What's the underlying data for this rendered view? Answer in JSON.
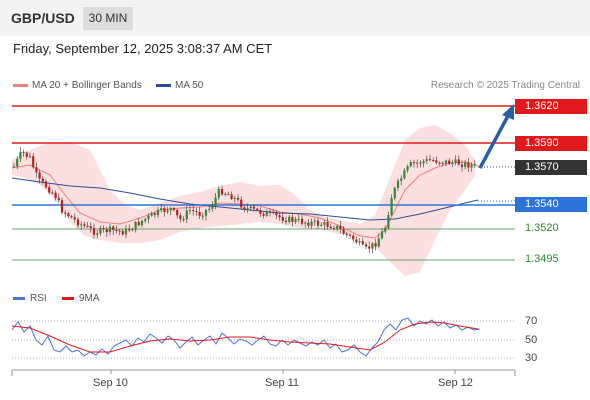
{
  "header": {
    "pair": "GBP/USD",
    "timeframe": "30 MIN"
  },
  "datetime": "Friday, September 12, 2025 3:08:37 AM CET",
  "legend": {
    "ma20": {
      "label": "MA 20 + Bollinger Bands",
      "color": "#f08080"
    },
    "ma50": {
      "label": "MA 50",
      "color": "#2b4c9b"
    }
  },
  "credit": "Research © 2025 Trading Central",
  "price_levels": {
    "r2": "1.3620",
    "r1": "1.3590",
    "last": "1.3570",
    "pivot": "1.3540",
    "s1": "1.3520",
    "s2": "1.3495"
  },
  "rsi_panel": {
    "legend": [
      {
        "label": "RSI",
        "color": "#4a74d9"
      },
      {
        "label": "9MA",
        "color": "#e0191d"
      }
    ],
    "levels": [
      "70",
      "50",
      "30"
    ]
  },
  "x_axis": {
    "labels": [
      "Sep 10",
      "Sep 11",
      "Sep 12"
    ]
  },
  "colors": {
    "resistance": "#e0191d",
    "pivot": "#2e73d8",
    "support": "#2f8a32",
    "arrow": "#2b5ca8",
    "candle_up": "#2f8a32",
    "candle_down": "#b22222"
  }
}
